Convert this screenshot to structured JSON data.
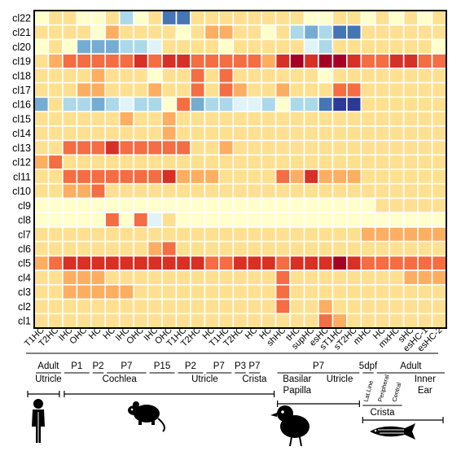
{
  "chart_data": {
    "type": "heatmap",
    "title": "",
    "rows": [
      "cl22",
      "cl21",
      "cl20",
      "cl19",
      "cl18",
      "cl17",
      "cl16",
      "cl15",
      "cl14",
      "cl13",
      "cl12",
      "cl11",
      "cl10",
      "cl9",
      "cl8",
      "cl7",
      "cl6",
      "cl5",
      "cl4",
      "cl3",
      "cl2",
      "cl1"
    ],
    "columns": [
      "T1HC",
      "T2HC",
      "IHC",
      "OHC",
      "HC",
      "HC",
      "IHC",
      "OHC",
      "IHC",
      "OHC",
      "T1HC",
      "T2HC",
      "HC",
      "T1HC",
      "T2HC",
      "HC",
      "HC",
      "shHC",
      "tHC",
      "supHC",
      "esHC",
      "sT1HC",
      "sT2HC",
      "mHC",
      "HC",
      "mxHC",
      "sHC",
      "esHC-1",
      "esHC-2"
    ],
    "value_scale": "0 (blue, low) to 10 (dark red, high)",
    "colors": {
      "0": "#2b3a97",
      "1": "#4575b4",
      "2": "#74add1",
      "3": "#abd9e9",
      "4": "#e0f3f8",
      "5": "#ffffcc",
      "6": "#fee090",
      "7": "#fdae61",
      "8": "#f46d43",
      "9": "#d73027",
      "10": "#a50026"
    },
    "values": [
      [
        5,
        6,
        6,
        5,
        5,
        6,
        3,
        5,
        6,
        1,
        1,
        6,
        6,
        6,
        6,
        6,
        6,
        6,
        6,
        5,
        5,
        6,
        6,
        5,
        6,
        5,
        6,
        5,
        6
      ],
      [
        6,
        6,
        6,
        6,
        5,
        7,
        6,
        6,
        6,
        6,
        5,
        6,
        7,
        7,
        6,
        6,
        5,
        6,
        3,
        2,
        3,
        1,
        1,
        6,
        6,
        6,
        6,
        6,
        6
      ],
      [
        5,
        6,
        5,
        2,
        2,
        2,
        3,
        3,
        4,
        6,
        6,
        6,
        6,
        5,
        6,
        6,
        6,
        6,
        6,
        4,
        3,
        6,
        6,
        6,
        6,
        6,
        6,
        6,
        5
      ],
      [
        6,
        7,
        8,
        8,
        8,
        8,
        8,
        9,
        8,
        9,
        9,
        8,
        8,
        8,
        8,
        8,
        7,
        9,
        10,
        9,
        10,
        10,
        9,
        8,
        8,
        9,
        9,
        8,
        8
      ],
      [
        6,
        6,
        6,
        6,
        7,
        6,
        6,
        6,
        5,
        6,
        6,
        8,
        6,
        8,
        6,
        6,
        6,
        6,
        6,
        6,
        5,
        6,
        6,
        6,
        6,
        6,
        6,
        6,
        6
      ],
      [
        6,
        6,
        6,
        7,
        7,
        6,
        6,
        6,
        7,
        6,
        6,
        8,
        6,
        8,
        7,
        6,
        6,
        7,
        6,
        6,
        6,
        8,
        8,
        6,
        6,
        6,
        6,
        6,
        6
      ],
      [
        2,
        6,
        3,
        3,
        2,
        3,
        4,
        3,
        3,
        5,
        8,
        2,
        3,
        3,
        4,
        4,
        3,
        5,
        3,
        3,
        1,
        0,
        0,
        6,
        6,
        6,
        6,
        6,
        6
      ],
      [
        6,
        6,
        6,
        6,
        6,
        6,
        7,
        6,
        6,
        7,
        6,
        6,
        6,
        6,
        6,
        6,
        6,
        6,
        6,
        6,
        6,
        6,
        6,
        6,
        6,
        6,
        6,
        6,
        6
      ],
      [
        6,
        6,
        6,
        6,
        6,
        6,
        6,
        6,
        6,
        7,
        6,
        6,
        6,
        6,
        6,
        6,
        6,
        6,
        6,
        6,
        6,
        6,
        6,
        6,
        6,
        6,
        6,
        6,
        6
      ],
      [
        6,
        6,
        8,
        8,
        8,
        9,
        8,
        8,
        8,
        8,
        8,
        6,
        6,
        7,
        6,
        6,
        6,
        6,
        6,
        6,
        6,
        6,
        6,
        6,
        6,
        6,
        6,
        6,
        6
      ],
      [
        7,
        8,
        6,
        6,
        6,
        6,
        6,
        6,
        6,
        6,
        6,
        6,
        6,
        6,
        6,
        6,
        6,
        6,
        6,
        6,
        6,
        6,
        6,
        6,
        6,
        6,
        6,
        6,
        6
      ],
      [
        6,
        6,
        8,
        8,
        8,
        8,
        8,
        8,
        8,
        9,
        7,
        7,
        7,
        6,
        6,
        6,
        6,
        8,
        7,
        9,
        7,
        7,
        7,
        6,
        6,
        6,
        6,
        6,
        6
      ],
      [
        6,
        6,
        7,
        7,
        8,
        6,
        6,
        6,
        6,
        6,
        6,
        6,
        6,
        6,
        6,
        6,
        6,
        6,
        6,
        6,
        6,
        6,
        6,
        6,
        6,
        6,
        6,
        6,
        6
      ],
      [
        5,
        5,
        5,
        5,
        5,
        5,
        5,
        5,
        5,
        5,
        5,
        5,
        5,
        5,
        5,
        5,
        5,
        5,
        5,
        5,
        5,
        5,
        5,
        5,
        6,
        6,
        6,
        6,
        6
      ],
      [
        5,
        5,
        5,
        5,
        5,
        8,
        5,
        8,
        4,
        6,
        5,
        5,
        5,
        5,
        5,
        5,
        5,
        5,
        5,
        5,
        5,
        5,
        5,
        5,
        5,
        5,
        5,
        5,
        5
      ],
      [
        6,
        6,
        6,
        6,
        6,
        6,
        6,
        6,
        6,
        6,
        6,
        6,
        6,
        6,
        6,
        6,
        6,
        6,
        6,
        6,
        6,
        6,
        6,
        7,
        7,
        7,
        7,
        7,
        7
      ],
      [
        6,
        6,
        6,
        6,
        6,
        6,
        6,
        6,
        7,
        8,
        6,
        6,
        6,
        6,
        6,
        6,
        6,
        6,
        6,
        6,
        6,
        6,
        6,
        6,
        6,
        6,
        6,
        6,
        6
      ],
      [
        7,
        8,
        9,
        9,
        9,
        9,
        9,
        9,
        9,
        9,
        9,
        9,
        8,
        8,
        9,
        9,
        9,
        8,
        9,
        9,
        9,
        10,
        9,
        8,
        8,
        8,
        8,
        8,
        8
      ],
      [
        6,
        6,
        7,
        7,
        7,
        6,
        6,
        6,
        6,
        6,
        6,
        6,
        6,
        6,
        6,
        6,
        6,
        8,
        6,
        6,
        6,
        6,
        6,
        6,
        6,
        6,
        7,
        7,
        7
      ],
      [
        6,
        6,
        7,
        7,
        7,
        7,
        7,
        6,
        6,
        6,
        6,
        6,
        6,
        6,
        6,
        6,
        6,
        8,
        6,
        6,
        6,
        6,
        6,
        6,
        6,
        6,
        6,
        6,
        6
      ],
      [
        6,
        6,
        6,
        6,
        6,
        6,
        6,
        6,
        6,
        6,
        6,
        6,
        6,
        6,
        6,
        6,
        6,
        8,
        6,
        6,
        7,
        6,
        6,
        6,
        6,
        6,
        6,
        6,
        6
      ],
      [
        6,
        6,
        6,
        6,
        6,
        6,
        6,
        6,
        6,
        6,
        6,
        6,
        6,
        6,
        6,
        6,
        6,
        6,
        6,
        6,
        8,
        7,
        6,
        6,
        6,
        6,
        6,
        6,
        6
      ]
    ],
    "stage_groups": [
      {
        "label": "Adult",
        "start": 0,
        "end": 1
      },
      {
        "label": "P1",
        "start": 2,
        "end": 3
      },
      {
        "label": "P2",
        "start": 4,
        "end": 4
      },
      {
        "label": "P7",
        "start": 5,
        "end": 7
      },
      {
        "label": "P15",
        "start": 8,
        "end": 9
      },
      {
        "label": "P2",
        "start": 10,
        "end": 11
      },
      {
        "label": "P7",
        "start": 12,
        "end": 13
      },
      {
        "label": "P3",
        "start": 14,
        "end": 14
      },
      {
        "label": "P7",
        "start": 15,
        "end": 15
      },
      {
        "label": "P7",
        "start": 17,
        "end": 22
      },
      {
        "label": "5dpf",
        "start": 23,
        "end": 23
      },
      {
        "label": "Adult",
        "start": 24,
        "end": 28
      }
    ],
    "tissue_groups": [
      {
        "label": "Utricle",
        "start": 0,
        "end": 1
      },
      {
        "label": "Cochlea",
        "start": 2,
        "end": 9
      },
      {
        "label": "Utricle",
        "start": 10,
        "end": 13
      },
      {
        "label": "Crista",
        "start": 14,
        "end": 16
      },
      {
        "label": "Basilar",
        "label2": "Papilla",
        "start": 17,
        "end": 19
      },
      {
        "label": "Utricle",
        "start": 20,
        "end": 22
      },
      {
        "label": "Lat.Line",
        "start": 23,
        "end": 23,
        "rotated": true
      },
      {
        "label": "Peripheral",
        "start": 24,
        "end": 24,
        "rotated": true
      },
      {
        "label": "Central",
        "start": 25,
        "end": 25,
        "rotated": true
      },
      {
        "label": "Inner",
        "label2": "Ear",
        "start": 26,
        "end": 28
      }
    ],
    "crista_sublabel": "Crista",
    "species": [
      {
        "name": "human",
        "icon": "human-icon"
      },
      {
        "name": "mouse",
        "icon": "mouse-icon"
      },
      {
        "name": "chick",
        "icon": "chick-icon"
      },
      {
        "name": "zebrafish",
        "icon": "zebrafish-icon"
      }
    ]
  }
}
